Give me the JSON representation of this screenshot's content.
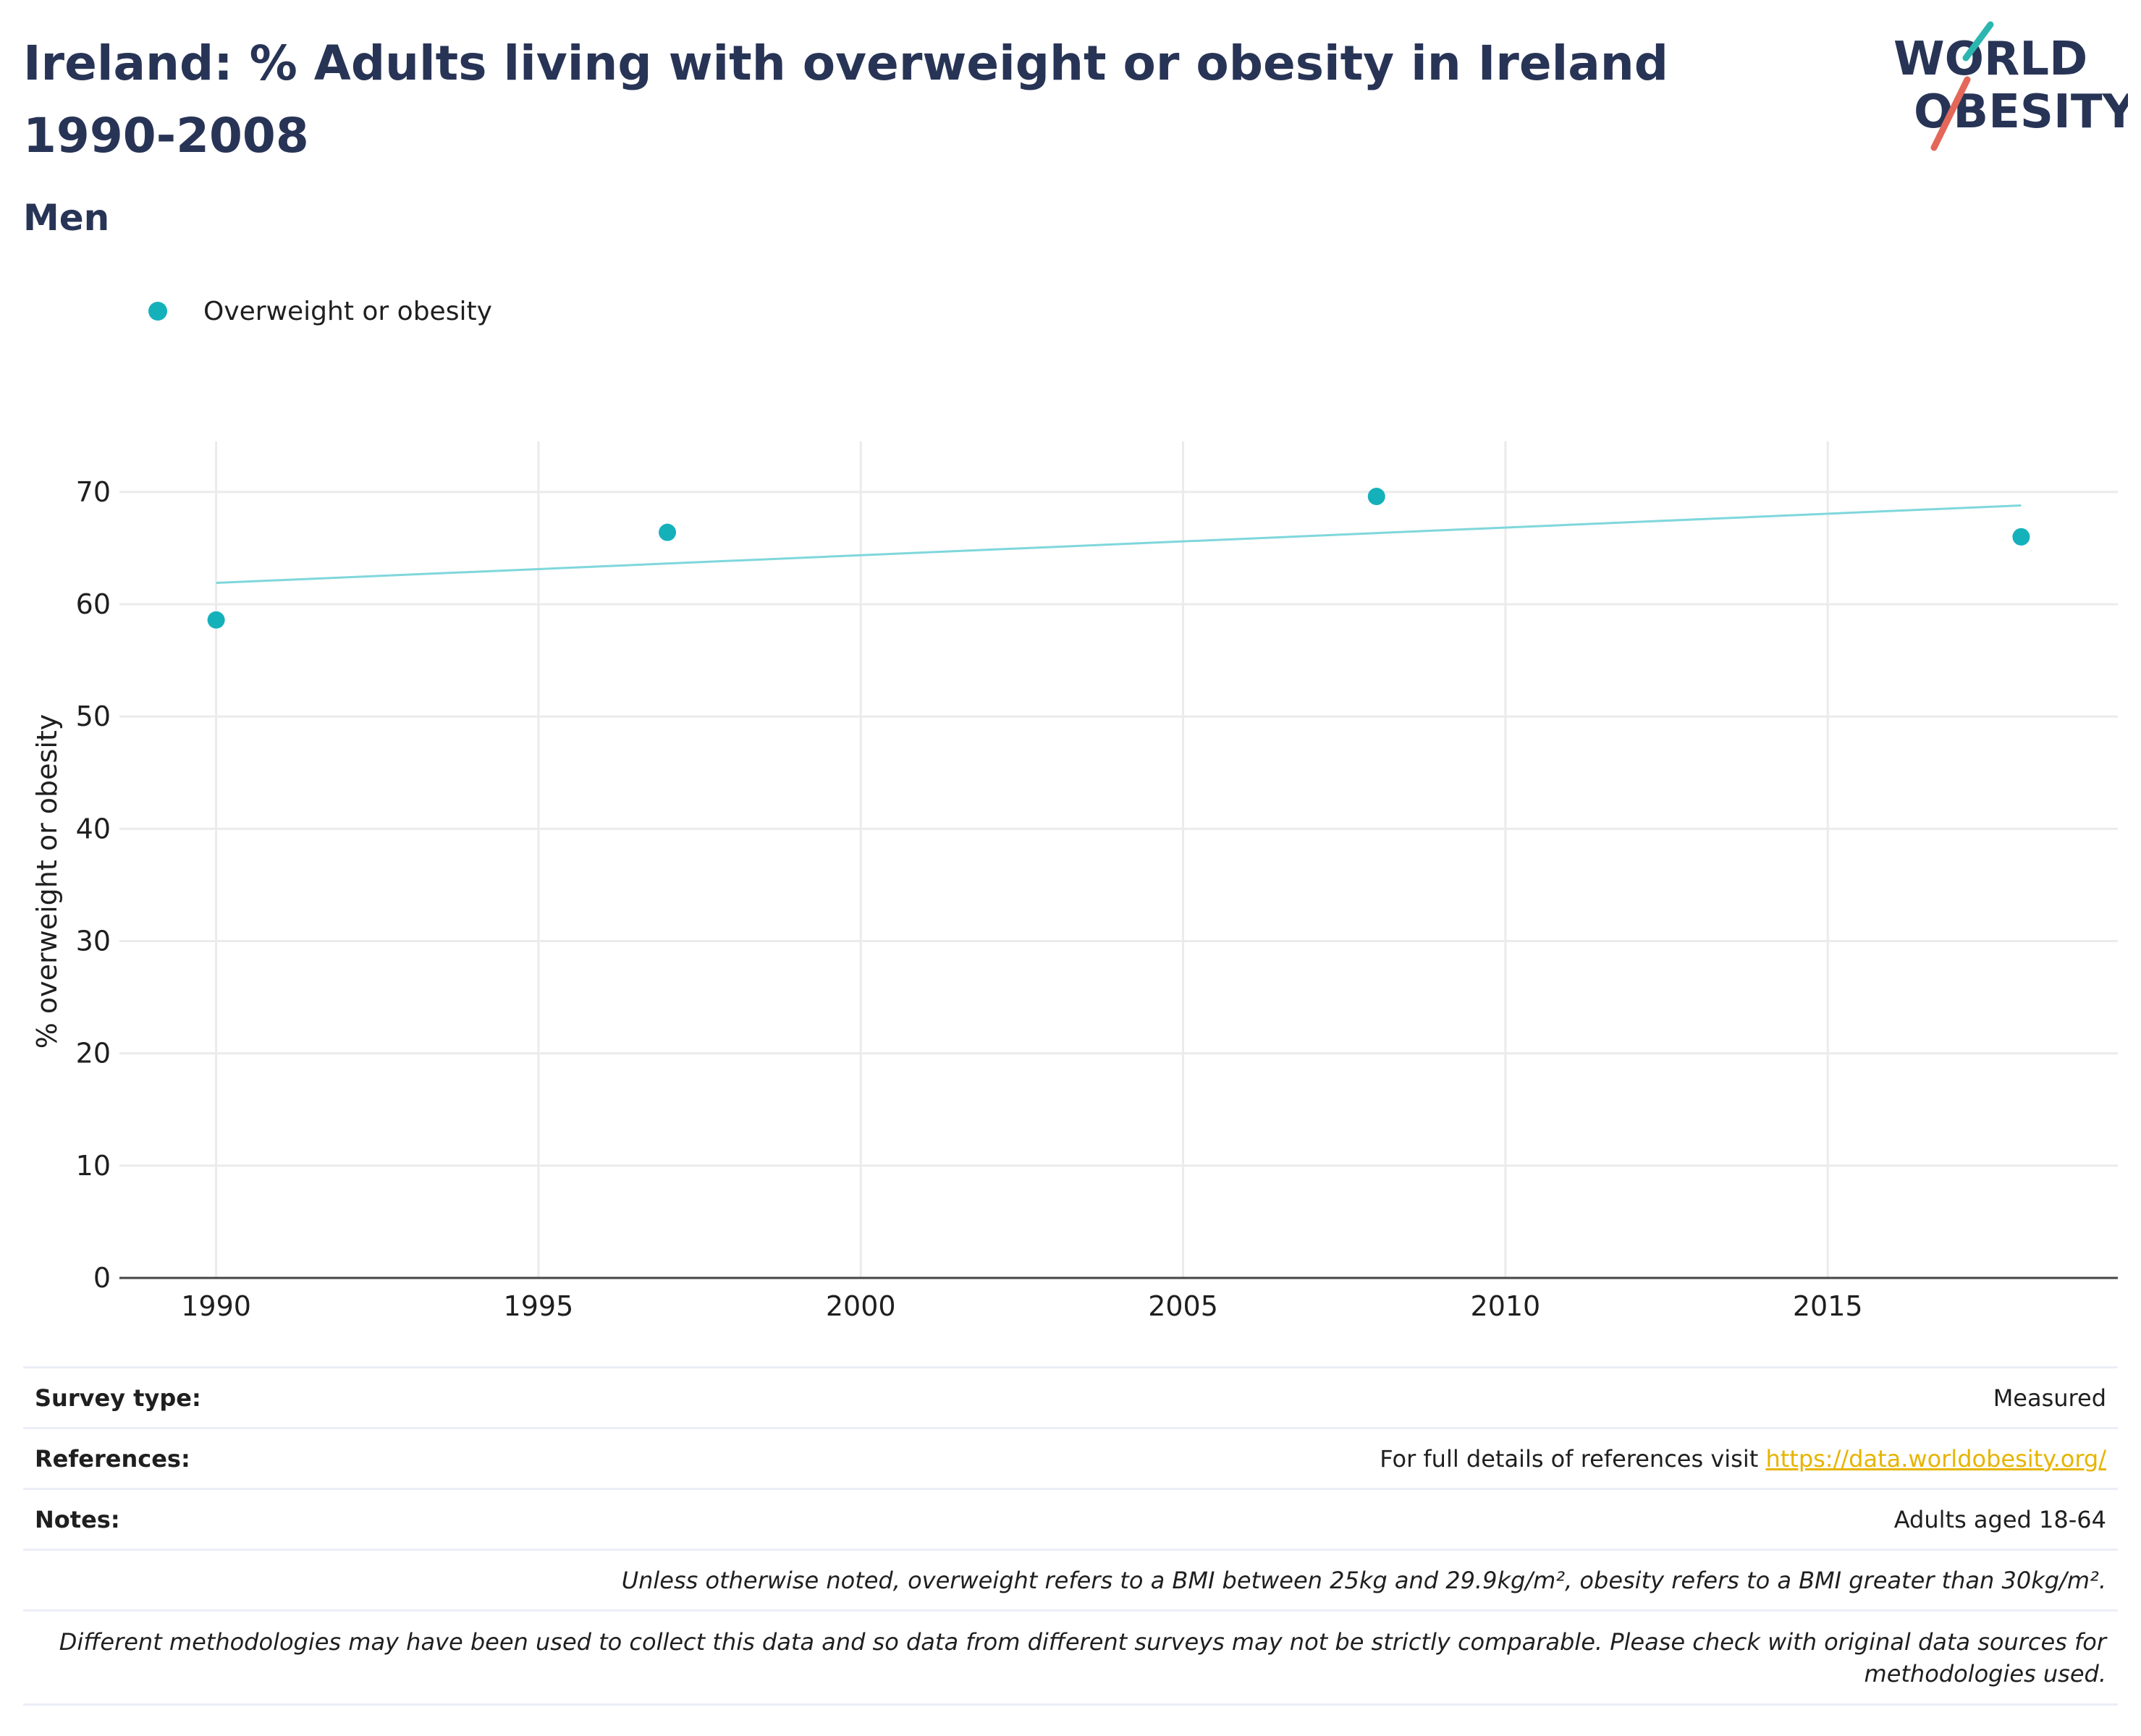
{
  "header": {
    "title": "Ireland: % Adults living with overweight or obesity in Ireland 1990-2008",
    "subtitle": "Men"
  },
  "logo": {
    "text": "WORLD OBESITY",
    "line1": "WORLD",
    "line2": "OBESITY",
    "accent_teal": "#2bb6b0",
    "accent_coral": "#e4685a",
    "color": "#283456"
  },
  "colors": {
    "series": "#14b1bb",
    "trend": "#7fd7dc",
    "grid": "#ebebeb",
    "axis": "#444444",
    "title": "#283456",
    "link": "#e6b400"
  },
  "chart_data": {
    "type": "scatter",
    "xlabel": "",
    "ylabel": "% overweight or obesity",
    "xlim": [
      1988.5,
      2019.5
    ],
    "ylim": [
      0,
      74.5
    ],
    "xticks": [
      1990,
      1995,
      2000,
      2005,
      2010,
      2015
    ],
    "yticks": [
      0,
      10,
      20,
      30,
      40,
      50,
      60,
      70
    ],
    "grid": true,
    "legend_position": "top-left",
    "series": [
      {
        "name": "Overweight or obesity",
        "points": [
          {
            "x": 1990,
            "y": 58.6
          },
          {
            "x": 1997,
            "y": 66.4
          },
          {
            "x": 2008,
            "y": 69.6
          },
          {
            "x": 2018,
            "y": 66.0
          }
        ]
      }
    ],
    "trendline": {
      "from": {
        "x": 1990,
        "y": 61.9
      },
      "to": {
        "x": 2018,
        "y": 68.8
      }
    }
  },
  "info": {
    "survey_type_label": "Survey type:",
    "survey_type_value": "Measured",
    "references_label": "References:",
    "references_text": "For full details of references visit",
    "references_link": "https://data.worldobesity.org/",
    "notes_label": "Notes:",
    "notes_value": "Adults aged 18-64",
    "note_bmi": "Unless otherwise noted, overweight refers to a BMI between 25kg and 29.9kg/m², obesity refers to a BMI greater than 30kg/m².",
    "note_methods": "Different methodologies may have been used to collect this data and so data from different surveys may not be strictly comparable. Please check with original data sources for methodologies used."
  }
}
